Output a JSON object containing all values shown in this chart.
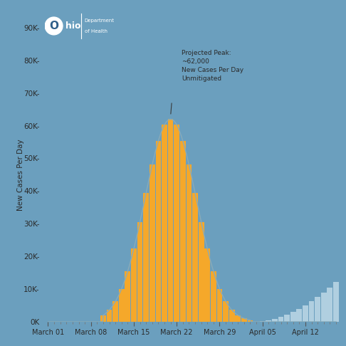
{
  "background_color": "#6b9fbe",
  "plot_bg_color": "#6b9fbe",
  "bar_color_orange": "#f5a82a",
  "bar_color_light": "#b0cfe0",
  "line_color": "#8aabb8",
  "ylabel": "New Cases Per Day",
  "yticks": [
    0,
    10000,
    20000,
    30000,
    40000,
    50000,
    60000,
    70000,
    80000,
    90000
  ],
  "ytick_labels": [
    "0K",
    "10K-",
    "20K-",
    "30K-",
    "40K-",
    "50K-",
    "60K-",
    "70K-",
    "80K-",
    "90K-"
  ],
  "annotation_lines": [
    "Projected Peak:",
    "~62,000",
    "New Cases Per Day",
    "Unmitigated"
  ],
  "peak_value": 62000,
  "peak_day": 20,
  "sigma": 4.2,
  "bar_start_day": 9,
  "bar_end_day": 33,
  "total_days": 48,
  "xtick_positions": [
    0,
    7,
    14,
    21,
    28,
    35,
    42
  ],
  "xtick_labels": [
    "March 01",
    "March 08",
    "March 15",
    "March 22",
    "March 29",
    "April 05",
    "April 12"
  ],
  "logo_bg": "#2f5f8a",
  "logo_text_color": "#ffffff",
  "logo_circle_color": "#ffffff",
  "logo_o_color": "#2f5f8a"
}
